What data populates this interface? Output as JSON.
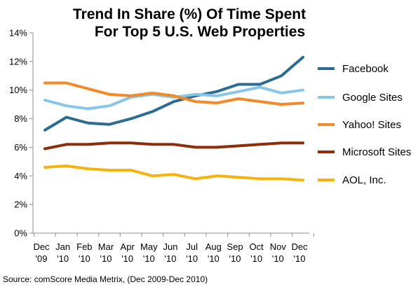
{
  "chart_data": {
    "type": "line",
    "title_lines": [
      "Trend In Share (%) Of Time Spent",
      "For Top 5 U.S. Web Properties"
    ],
    "source": "Source: comScore Media Metrix, (Dec 2009-Dec 2010)",
    "categories": [
      {
        "month": "Dec",
        "year": "'09"
      },
      {
        "month": "Jan",
        "year": "'10"
      },
      {
        "month": "Feb",
        "year": "'10"
      },
      {
        "month": "Mar",
        "year": "'10"
      },
      {
        "month": "Apr",
        "year": "'10"
      },
      {
        "month": "May",
        "year": "'10"
      },
      {
        "month": "Jun",
        "year": "'10"
      },
      {
        "month": "Jul",
        "year": "'10"
      },
      {
        "month": "Aug",
        "year": "'10"
      },
      {
        "month": "Sep",
        "year": "'10"
      },
      {
        "month": "Oct",
        "year": "'10"
      },
      {
        "month": "Nov",
        "year": "'10"
      },
      {
        "month": "Dec",
        "year": "'10"
      }
    ],
    "y_ticks": [
      "0%",
      "2%",
      "4%",
      "6%",
      "8%",
      "10%",
      "12%",
      "14%"
    ],
    "ylim": [
      0,
      14
    ],
    "legend_position": "right",
    "series": [
      {
        "name": "Facebook",
        "color": "#2d6b91",
        "values": [
          7.2,
          8.1,
          7.7,
          7.6,
          8.0,
          8.5,
          9.2,
          9.6,
          9.9,
          10.4,
          10.4,
          11.0,
          12.3
        ]
      },
      {
        "name": "Google Sites",
        "color": "#87c6e8",
        "values": [
          9.3,
          8.9,
          8.7,
          8.9,
          9.5,
          9.7,
          9.5,
          9.7,
          9.6,
          9.9,
          10.2,
          9.8,
          10.0
        ]
      },
      {
        "name": "Yahoo! Sites",
        "color": "#f08a2a",
        "values": [
          10.5,
          10.5,
          10.1,
          9.7,
          9.6,
          9.8,
          9.6,
          9.2,
          9.1,
          9.4,
          9.2,
          9.0,
          9.1
        ]
      },
      {
        "name": "Microsoft Sites",
        "color": "#8b2e0c",
        "values": [
          5.9,
          6.2,
          6.2,
          6.3,
          6.3,
          6.2,
          6.2,
          6.0,
          6.0,
          6.1,
          6.2,
          6.3,
          6.3
        ]
      },
      {
        "name": "AOL, Inc.",
        "color": "#f6b30f",
        "values": [
          4.6,
          4.7,
          4.5,
          4.4,
          4.4,
          4.0,
          4.1,
          3.8,
          4.0,
          3.9,
          3.8,
          3.8,
          3.7
        ]
      }
    ]
  }
}
